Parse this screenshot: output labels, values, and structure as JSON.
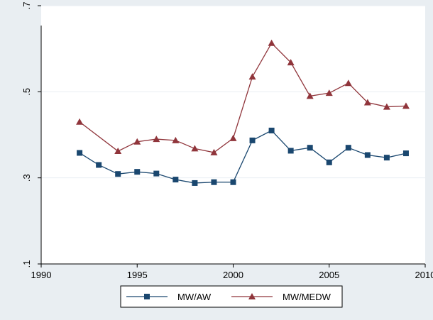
{
  "chart_data": {
    "type": "line",
    "title": "",
    "xlabel": "",
    "ylabel": "",
    "xlim": [
      1990,
      2010
    ],
    "ylim": [
      0.1,
      0.7
    ],
    "x_ticks": [
      1990,
      1995,
      2000,
      2005,
      2010
    ],
    "x_tick_labels": [
      "1990",
      "1995",
      "2000",
      "2005",
      "2010"
    ],
    "y_ticks": [
      0.1,
      0.3,
      0.5,
      0.7
    ],
    "y_tick_labels": [
      ".1",
      ".3",
      ".5",
      ".7"
    ],
    "grid": true,
    "legend_position": "bottom",
    "series": [
      {
        "name": "MW/AW",
        "color": "#1a476f",
        "marker": "square",
        "x": [
          1992,
          1993,
          1994,
          1995,
          1996,
          1997,
          1998,
          1999,
          2000,
          2001,
          2002,
          2003,
          2004,
          2005,
          2006,
          2007,
          2008,
          2009
        ],
        "y": [
          0.358,
          0.33,
          0.309,
          0.314,
          0.31,
          0.296,
          0.288,
          0.29,
          0.29,
          0.387,
          0.41,
          0.363,
          0.37,
          0.336,
          0.37,
          0.353,
          0.347,
          0.357
        ]
      },
      {
        "name": "MW/MEDW",
        "color": "#90353b",
        "marker": "triangle",
        "x": [
          1992,
          1994,
          1995,
          1996,
          1997,
          1998,
          1999,
          2000,
          2001,
          2002,
          2003,
          2004,
          2005,
          2006,
          2007,
          2008,
          2009
        ],
        "y": [
          0.43,
          0.362,
          0.384,
          0.39,
          0.387,
          0.368,
          0.359,
          0.392,
          0.535,
          0.613,
          0.568,
          0.49,
          0.497,
          0.52,
          0.475,
          0.465,
          0.467
        ]
      }
    ]
  },
  "colors": {
    "outer_background": "#e9eef2",
    "plot_background": "#ffffff",
    "gridline": "#e9eef2"
  }
}
